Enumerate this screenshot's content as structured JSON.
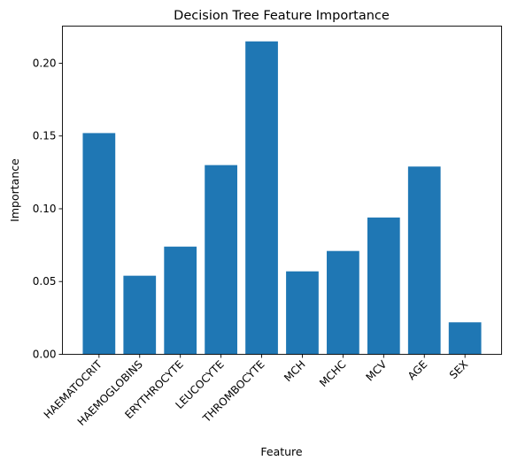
{
  "chart_data": {
    "type": "bar",
    "title": "Decision Tree Feature Importance",
    "xlabel": "Feature",
    "ylabel": "Importance",
    "categories": [
      "HAEMATOCRIT",
      "HAEMOGLOBINS",
      "ERYTHROCYTE",
      "LEUCOCYTE",
      "THROMBOCYTE",
      "MCH",
      "MCHC",
      "MCV",
      "AGE",
      "SEX"
    ],
    "values": [
      0.152,
      0.054,
      0.074,
      0.13,
      0.215,
      0.057,
      0.071,
      0.094,
      0.129,
      0.022
    ],
    "ylim": [
      0,
      0.2255
    ],
    "yticks": [
      "0.00",
      "0.05",
      "0.10",
      "0.15",
      "0.20"
    ],
    "bar_color": "#1f77b4",
    "grid": false,
    "legend": "none"
  }
}
